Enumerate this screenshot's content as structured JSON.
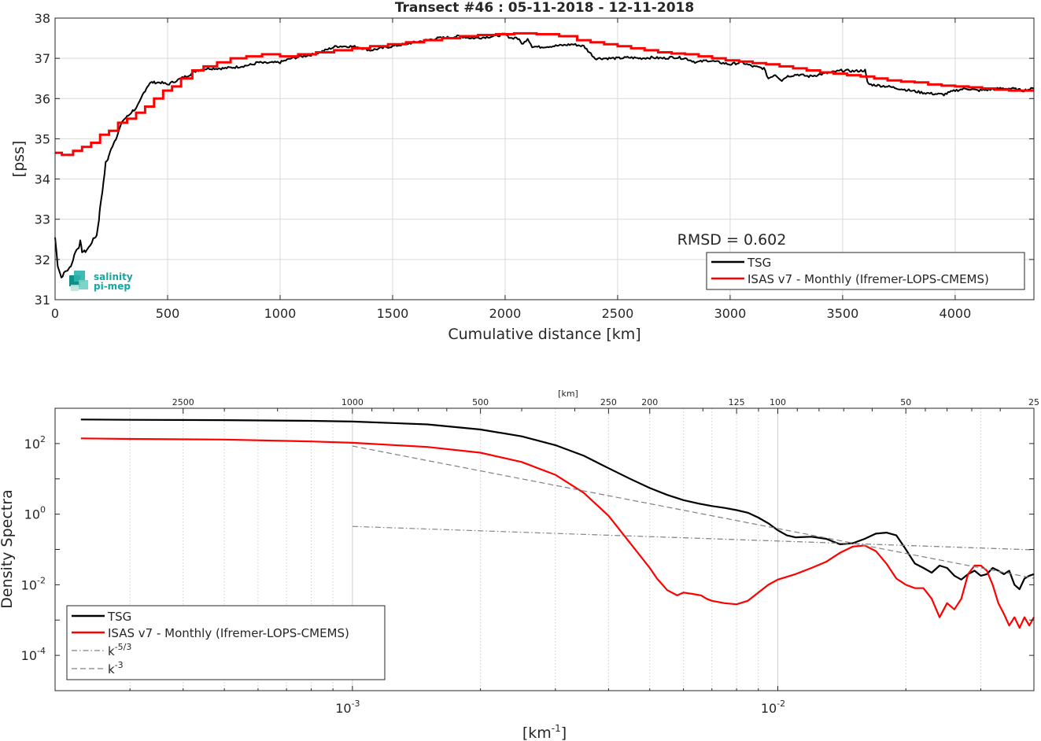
{
  "top_title": "Transect #46 : 05-11-2018 - 12-11-2018",
  "rmsd_label": "RMSD = 0.602",
  "logo_text": [
    "salinity",
    "pi-mep"
  ],
  "colors": {
    "tsg": "#000000",
    "isas": "#ff0000",
    "ref": "#808080",
    "grid": "#d9d9d9",
    "logo": "#17a6a0"
  },
  "chart_data": [
    {
      "type": "line",
      "title": "Transect #46 : 05-11-2018 - 12-11-2018",
      "xlabel": "Cumulative distance [km]",
      "ylabel": "[pss]",
      "xlim": [
        0,
        4350
      ],
      "ylim": [
        31,
        38
      ],
      "xticks": [
        0,
        500,
        1000,
        1500,
        2000,
        2500,
        3000,
        3500,
        4000
      ],
      "yticks": [
        31,
        32,
        33,
        34,
        35,
        36,
        37,
        38
      ],
      "grid": true,
      "legend_position": "bottom-right",
      "annotation": "RMSD = 0.602",
      "series": [
        {
          "name": "TSG",
          "color": "#000000",
          "x": [
            0,
            12,
            28,
            45,
            60,
            75,
            90,
            105,
            112,
            120,
            135,
            150,
            170,
            185,
            195,
            200,
            215,
            225,
            235,
            240,
            250,
            260,
            270,
            280,
            290,
            300,
            310,
            320,
            330,
            345,
            360,
            375,
            390,
            400,
            410,
            420,
            430,
            440,
            470,
            500,
            520,
            540,
            560,
            600,
            630,
            650,
            680,
            750,
            800,
            850,
            880,
            900,
            930,
            1000,
            1050,
            1100,
            1150,
            1200,
            1250,
            1300,
            1350,
            1400,
            1450,
            1500,
            1550,
            1600,
            1650,
            1700,
            1750,
            1800,
            1850,
            1900,
            1950,
            2000,
            2010,
            2030,
            2050,
            2080,
            2100,
            2120,
            2150,
            2200,
            2250,
            2300,
            2350,
            2400,
            2450,
            2500,
            2550,
            2600,
            2650,
            2700,
            2750,
            2800,
            2850,
            2900,
            2950,
            3000,
            3050,
            3100,
            3150,
            3170,
            3200,
            3230,
            3250,
            3300,
            3350,
            3400,
            3450,
            3500,
            3550,
            3600,
            3610,
            3620,
            3700,
            3750,
            3800,
            3850,
            3900,
            3950,
            4000,
            4050,
            4100,
            4150,
            4200,
            4250,
            4300,
            4350
          ],
          "values": [
            32.55,
            31.85,
            31.55,
            31.7,
            31.75,
            31.9,
            32.2,
            32.3,
            32.45,
            32.2,
            32.2,
            32.3,
            32.5,
            32.6,
            33.0,
            33.3,
            33.9,
            34.4,
            34.5,
            34.6,
            34.75,
            34.9,
            35.0,
            35.15,
            35.3,
            35.45,
            35.5,
            35.55,
            35.6,
            35.7,
            35.75,
            35.9,
            36.1,
            36.2,
            36.3,
            36.38,
            36.4,
            36.4,
            36.4,
            36.35,
            36.4,
            36.45,
            36.5,
            36.6,
            36.7,
            36.72,
            36.75,
            36.75,
            36.78,
            36.82,
            36.85,
            36.9,
            36.88,
            36.9,
            37.0,
            37.05,
            37.1,
            37.2,
            37.3,
            37.3,
            37.28,
            37.2,
            37.25,
            37.3,
            37.35,
            37.4,
            37.45,
            37.5,
            37.52,
            37.55,
            37.5,
            37.52,
            37.55,
            37.6,
            37.55,
            37.5,
            37.52,
            37.35,
            37.5,
            37.3,
            37.28,
            37.3,
            37.32,
            37.35,
            37.3,
            37.0,
            37.0,
            37.0,
            37.02,
            37.0,
            37.02,
            37.0,
            37.03,
            37.0,
            36.9,
            36.95,
            36.9,
            36.85,
            36.9,
            36.8,
            36.75,
            36.5,
            36.6,
            36.45,
            36.55,
            36.6,
            36.55,
            36.6,
            36.65,
            36.7,
            36.68,
            36.7,
            36.4,
            36.35,
            36.3,
            36.25,
            36.2,
            36.15,
            36.12,
            36.1,
            36.2,
            36.25,
            36.2,
            36.22,
            36.25,
            36.25,
            36.2,
            36.25
          ]
        },
        {
          "name": "ISAS v7 - Monthly (Ifremer-LOPS-CMEMS)",
          "color": "#ff0000",
          "step": true,
          "x": [
            0,
            30,
            80,
            120,
            160,
            200,
            240,
            280,
            320,
            360,
            400,
            440,
            480,
            520,
            560,
            610,
            660,
            720,
            780,
            850,
            920,
            1000,
            1080,
            1160,
            1240,
            1320,
            1400,
            1480,
            1560,
            1640,
            1720,
            1800,
            1880,
            1960,
            2040,
            2140,
            2240,
            2320,
            2380,
            2440,
            2500,
            2560,
            2620,
            2680,
            2740,
            2800,
            2860,
            2920,
            2980,
            3040,
            3100,
            3160,
            3220,
            3280,
            3340,
            3400,
            3460,
            3520,
            3580,
            3640,
            3700,
            3760,
            3820,
            3880,
            3940,
            4000,
            4060,
            4120,
            4180,
            4240,
            4300,
            4350
          ],
          "values": [
            34.65,
            34.6,
            34.7,
            34.8,
            34.9,
            35.1,
            35.2,
            35.4,
            35.5,
            35.65,
            35.8,
            36.0,
            36.2,
            36.3,
            36.5,
            36.7,
            36.8,
            36.9,
            37.0,
            37.05,
            37.1,
            37.05,
            37.1,
            37.15,
            37.2,
            37.25,
            37.3,
            37.35,
            37.4,
            37.45,
            37.5,
            37.55,
            37.58,
            37.6,
            37.62,
            37.6,
            37.55,
            37.45,
            37.4,
            37.35,
            37.3,
            37.25,
            37.2,
            37.15,
            37.12,
            37.1,
            37.05,
            37.0,
            36.95,
            36.92,
            36.88,
            36.85,
            36.8,
            36.75,
            36.7,
            36.65,
            36.62,
            36.58,
            36.55,
            36.5,
            36.45,
            36.42,
            36.4,
            36.35,
            36.32,
            36.3,
            36.28,
            36.25,
            36.22,
            36.2,
            36.2,
            36.2
          ]
        }
      ]
    },
    {
      "type": "line",
      "title": "",
      "xlabel": "[km-1]",
      "ylabel": "Density Spectra",
      "x_scale": "log",
      "y_scale": "log",
      "xlim": [
        0.0002,
        0.04
      ],
      "ylim": [
        1e-05,
        1000
      ],
      "xtick_labels": [
        {
          "value": 0.001,
          "base": "10",
          "exp": "-3"
        },
        {
          "value": 0.01,
          "base": "10",
          "exp": "-2"
        }
      ],
      "ytick_labels": [
        {
          "value": 0.0001,
          "base": "10",
          "exp": "-4"
        },
        {
          "value": 0.01,
          "base": "10",
          "exp": "-2"
        },
        {
          "value": 1,
          "base": "10",
          "exp": "0"
        },
        {
          "value": 100,
          "base": "10",
          "exp": "2"
        }
      ],
      "top_axis_label": "[km]",
      "top_ticks": [
        {
          "label": "2500",
          "km": 2500
        },
        {
          "label": "1000",
          "km": 1000
        },
        {
          "label": "500",
          "km": 500
        },
        {
          "label": "250",
          "km": 250
        },
        {
          "label": "200",
          "km": 200
        },
        {
          "label": "125",
          "km": 125
        },
        {
          "label": "100",
          "km": 100
        },
        {
          "label": "50",
          "km": 50
        },
        {
          "label": "25",
          "km": 25
        }
      ],
      "top_minor_km": [
        2000,
        1500,
        900,
        800,
        700,
        600,
        400,
        300,
        150,
        111,
        90,
        80,
        70,
        60,
        45,
        40,
        35,
        30
      ],
      "grid": true,
      "legend_position": "bottom-left",
      "series": [
        {
          "name": "TSG",
          "color": "#000000",
          "x": [
            0.00023,
            0.0003,
            0.0005,
            0.0008,
            0.001,
            0.0015,
            0.002,
            0.0025,
            0.003,
            0.0035,
            0.004,
            0.0045,
            0.005,
            0.0055,
            0.006,
            0.0065,
            0.007,
            0.0075,
            0.008,
            0.0085,
            0.009,
            0.0095,
            0.01,
            0.0105,
            0.011,
            0.012,
            0.013,
            0.014,
            0.015,
            0.016,
            0.017,
            0.018,
            0.019,
            0.02,
            0.021,
            0.022,
            0.023,
            0.024,
            0.025,
            0.026,
            0.027,
            0.028,
            0.029,
            0.03,
            0.031,
            0.032,
            0.033,
            0.034,
            0.035,
            0.036,
            0.037,
            0.038,
            0.039,
            0.04
          ],
          "values": [
            480,
            470,
            460,
            440,
            420,
            350,
            250,
            160,
            90,
            45,
            20,
            10,
            5.5,
            3.5,
            2.5,
            2.0,
            1.7,
            1.5,
            1.3,
            1.1,
            0.8,
            0.55,
            0.35,
            0.25,
            0.22,
            0.23,
            0.2,
            0.14,
            0.15,
            0.2,
            0.28,
            0.3,
            0.25,
            0.1,
            0.04,
            0.03,
            0.022,
            0.035,
            0.03,
            0.018,
            0.014,
            0.02,
            0.025,
            0.018,
            0.02,
            0.03,
            0.025,
            0.02,
            0.025,
            0.01,
            0.0075,
            0.015,
            0.018,
            0.02
          ]
        },
        {
          "name": "ISAS v7 - Monthly (Ifremer-LOPS-CMEMS)",
          "color": "#ff0000",
          "x": [
            0.00023,
            0.0003,
            0.0005,
            0.0008,
            0.001,
            0.0015,
            0.002,
            0.0025,
            0.003,
            0.0035,
            0.004,
            0.0045,
            0.005,
            0.0052,
            0.0055,
            0.0058,
            0.006,
            0.0063,
            0.0066,
            0.0068,
            0.007,
            0.0075,
            0.008,
            0.0085,
            0.009,
            0.0095,
            0.01,
            0.011,
            0.012,
            0.013,
            0.014,
            0.015,
            0.016,
            0.017,
            0.018,
            0.019,
            0.02,
            0.021,
            0.022,
            0.023,
            0.024,
            0.025,
            0.026,
            0.027,
            0.028,
            0.029,
            0.03,
            0.031,
            0.032,
            0.033,
            0.034,
            0.035,
            0.036,
            0.037,
            0.038,
            0.039,
            0.04
          ],
          "values": [
            140,
            135,
            130,
            115,
            105,
            80,
            55,
            30,
            13,
            4,
            0.9,
            0.15,
            0.03,
            0.015,
            0.007,
            0.005,
            0.006,
            0.0055,
            0.005,
            0.004,
            0.0035,
            0.003,
            0.0028,
            0.0035,
            0.006,
            0.01,
            0.014,
            0.02,
            0.03,
            0.045,
            0.08,
            0.12,
            0.13,
            0.09,
            0.04,
            0.015,
            0.01,
            0.008,
            0.008,
            0.004,
            0.0012,
            0.003,
            0.002,
            0.004,
            0.02,
            0.035,
            0.035,
            0.025,
            0.01,
            0.003,
            0.0015,
            0.0007,
            0.0012,
            0.0006,
            0.0012,
            0.0007,
            0.0012
          ]
        },
        {
          "name": "k-5/3",
          "label_base": "k",
          "label_exp": "-5/3",
          "color": "#808080",
          "dash": "dashdot",
          "x": [
            0.001,
            0.04
          ],
          "values": [
            0.45,
            0.0973
          ]
        },
        {
          "name": "k-3",
          "label_base": "k",
          "label_exp": "-3",
          "color": "#808080",
          "dash": "dashed",
          "x": [
            0.001,
            0.04
          ],
          "values": [
            85,
            0.0153
          ]
        }
      ]
    }
  ]
}
